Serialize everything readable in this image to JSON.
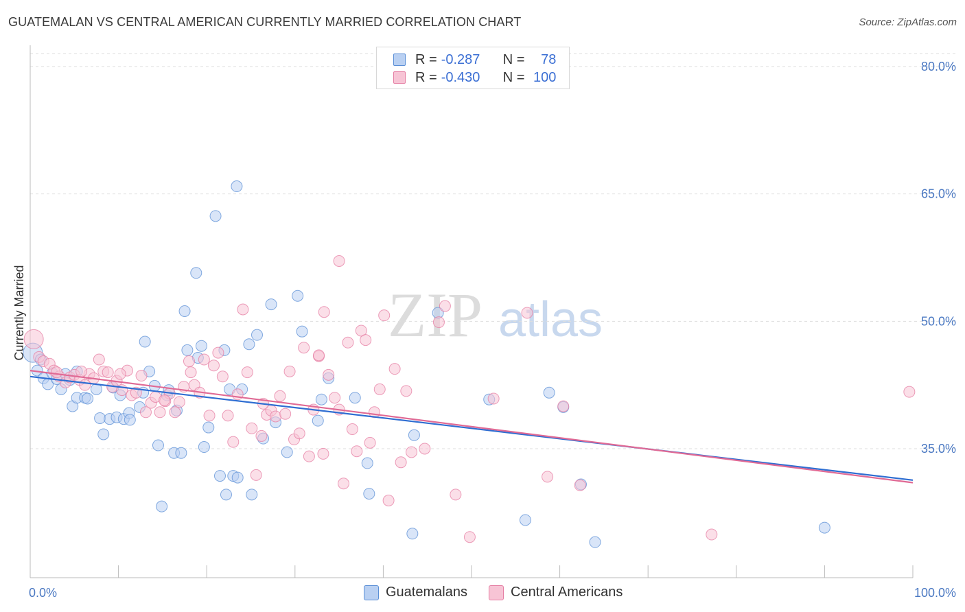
{
  "header": {
    "title": "GUATEMALAN VS CENTRAL AMERICAN CURRENTLY MARRIED CORRELATION CHART",
    "source": "Source: ZipAtlas.com"
  },
  "watermark": {
    "zip": "ZIP",
    "atlas": "atlas"
  },
  "legend": {
    "rows": [
      {
        "r_label": "R =",
        "r_value": "-0.287",
        "n_label": "N =",
        "n_value": "78",
        "color": "#5b8fd6",
        "fill": "#b9d0f2"
      },
      {
        "r_label": "R =",
        "r_value": "-0.430",
        "n_label": "N =",
        "n_value": "100",
        "color": "#e57ea3",
        "fill": "#f7c4d5"
      }
    ]
  },
  "bottom_legend": [
    {
      "label": "Guatemalans",
      "color": "#5b8fd6",
      "fill": "#b9d0f2"
    },
    {
      "label": "Central Americans",
      "color": "#e57ea3",
      "fill": "#f7c4d5"
    }
  ],
  "chart_data": {
    "type": "scatter",
    "title": "GUATEMALAN VS CENTRAL AMERICAN CURRENTLY MARRIED CORRELATION CHART",
    "xlabel": "",
    "ylabel": "Currently Married",
    "xlim": [
      0,
      100
    ],
    "ylim": [
      21,
      83
    ],
    "x_tick_labels": [
      {
        "value": 0,
        "label": "0.0%"
      },
      {
        "value": 100,
        "label": "100.0%"
      }
    ],
    "y_tick_labels": [
      {
        "value": 35,
        "label": "35.0%"
      },
      {
        "value": 50,
        "label": "50.0%"
      },
      {
        "value": 65,
        "label": "65.0%"
      },
      {
        "value": 80,
        "label": "80.0%"
      }
    ],
    "x_minor_ticks": [
      10,
      20,
      30,
      40,
      50,
      60,
      70,
      80,
      90
    ],
    "grid": "horizontal dashed",
    "legend_position": "top-center",
    "series": [
      {
        "name": "Guatemalans",
        "stroke": "#5b8fd6",
        "fill": "#b9d0f2",
        "trend": {
          "x": [
            0,
            100
          ],
          "y": [
            43.5,
            31.3
          ]
        },
        "points": [
          [
            0.3,
            46.3
          ],
          [
            0.8,
            44.2
          ],
          [
            1.2,
            45.5
          ],
          [
            1.5,
            43.3
          ],
          [
            2.0,
            42.6
          ],
          [
            2.5,
            43.9
          ],
          [
            3.0,
            43.2
          ],
          [
            3.5,
            42.0
          ],
          [
            4.0,
            43.8
          ],
          [
            4.5,
            43.1
          ],
          [
            4.8,
            40.0
          ],
          [
            5.3,
            44.1
          ],
          [
            5.3,
            41.0
          ],
          [
            6.2,
            41.0
          ],
          [
            6.5,
            40.9
          ],
          [
            7.5,
            42.0
          ],
          [
            7.9,
            38.6
          ],
          [
            8.3,
            36.7
          ],
          [
            9.0,
            38.5
          ],
          [
            9.4,
            42.2
          ],
          [
            9.8,
            38.7
          ],
          [
            10.2,
            41.3
          ],
          [
            10.6,
            38.5
          ],
          [
            11.2,
            39.2
          ],
          [
            11.3,
            38.4
          ],
          [
            12.4,
            39.9
          ],
          [
            12.8,
            41.6
          ],
          [
            13.0,
            47.6
          ],
          [
            13.5,
            44.1
          ],
          [
            14.1,
            42.4
          ],
          [
            14.5,
            35.4
          ],
          [
            14.9,
            28.2
          ],
          [
            15.5,
            41.3
          ],
          [
            15.7,
            41.9
          ],
          [
            16.3,
            34.5
          ],
          [
            16.6,
            39.5
          ],
          [
            17.1,
            34.5
          ],
          [
            17.5,
            51.2
          ],
          [
            17.8,
            46.6
          ],
          [
            18.8,
            55.7
          ],
          [
            19.0,
            45.7
          ],
          [
            19.4,
            47.1
          ],
          [
            19.7,
            35.2
          ],
          [
            20.2,
            37.5
          ],
          [
            21.0,
            62.4
          ],
          [
            21.5,
            31.8
          ],
          [
            22.0,
            46.6
          ],
          [
            22.2,
            29.6
          ],
          [
            22.6,
            42.0
          ],
          [
            23.0,
            31.8
          ],
          [
            23.5,
            31.6
          ],
          [
            23.4,
            65.9
          ],
          [
            24.0,
            42.0
          ],
          [
            24.8,
            47.3
          ],
          [
            25.1,
            29.6
          ],
          [
            25.7,
            48.4
          ],
          [
            26.4,
            36.2
          ],
          [
            27.3,
            52.0
          ],
          [
            27.8,
            38.1
          ],
          [
            29.1,
            34.6
          ],
          [
            30.3,
            53.0
          ],
          [
            30.8,
            48.8
          ],
          [
            32.6,
            38.3
          ],
          [
            33.0,
            40.8
          ],
          [
            33.8,
            43.3
          ],
          [
            36.8,
            41.0
          ],
          [
            38.2,
            33.3
          ],
          [
            38.4,
            29.7
          ],
          [
            43.3,
            25.0
          ],
          [
            43.5,
            36.6
          ],
          [
            46.2,
            51.0
          ],
          [
            52.0,
            40.8
          ],
          [
            58.8,
            41.6
          ],
          [
            60.4,
            39.9
          ],
          [
            62.4,
            30.8
          ],
          [
            56.1,
            26.6
          ],
          [
            90.0,
            25.7
          ],
          [
            64.0,
            24.0
          ]
        ]
      },
      {
        "name": "Central Americans",
        "stroke": "#e57ea3",
        "fill": "#f7c4d5",
        "trend": {
          "x": [
            0,
            100
          ],
          "y": [
            44.2,
            31.0
          ]
        },
        "points": [
          [
            0.4,
            47.9
          ],
          [
            1.0,
            45.8
          ],
          [
            1.5,
            45.3
          ],
          [
            2.2,
            45.0
          ],
          [
            2.7,
            44.2
          ],
          [
            3.3,
            43.5
          ],
          [
            4.0,
            42.8
          ],
          [
            4.5,
            43.4
          ],
          [
            5.0,
            43.7
          ],
          [
            5.6,
            43.1
          ],
          [
            6.2,
            42.5
          ],
          [
            6.7,
            43.8
          ],
          [
            7.2,
            43.3
          ],
          [
            7.8,
            45.5
          ],
          [
            8.3,
            44.1
          ],
          [
            8.8,
            44.0
          ],
          [
            9.3,
            42.3
          ],
          [
            9.8,
            43.0
          ],
          [
            10.4,
            41.9
          ],
          [
            11.0,
            44.2
          ],
          [
            11.5,
            41.3
          ],
          [
            12.0,
            41.6
          ],
          [
            12.6,
            43.6
          ],
          [
            13.1,
            39.3
          ],
          [
            13.7,
            40.4
          ],
          [
            14.2,
            41.1
          ],
          [
            14.7,
            39.3
          ],
          [
            15.3,
            40.6
          ],
          [
            15.8,
            41.5
          ],
          [
            16.4,
            39.3
          ],
          [
            16.9,
            40.5
          ],
          [
            17.4,
            42.3
          ],
          [
            18.0,
            45.3
          ],
          [
            18.6,
            42.5
          ],
          [
            19.2,
            41.6
          ],
          [
            19.7,
            45.5
          ],
          [
            20.3,
            38.9
          ],
          [
            20.8,
            44.8
          ],
          [
            21.3,
            46.3
          ],
          [
            21.8,
            43.5
          ],
          [
            22.4,
            38.9
          ],
          [
            23.0,
            35.8
          ],
          [
            23.5,
            41.4
          ],
          [
            24.1,
            51.4
          ],
          [
            24.6,
            44.0
          ],
          [
            25.1,
            37.4
          ],
          [
            25.6,
            31.9
          ],
          [
            26.2,
            36.5
          ],
          [
            26.8,
            39.0
          ],
          [
            27.3,
            39.5
          ],
          [
            27.8,
            38.8
          ],
          [
            28.3,
            41.2
          ],
          [
            28.9,
            39.1
          ],
          [
            29.4,
            44.1
          ],
          [
            29.9,
            36.1
          ],
          [
            30.5,
            36.8
          ],
          [
            31.0,
            46.9
          ],
          [
            31.6,
            34.1
          ],
          [
            32.1,
            39.6
          ],
          [
            32.7,
            45.9
          ],
          [
            33.2,
            34.4
          ],
          [
            33.8,
            43.7
          ],
          [
            34.5,
            41.0
          ],
          [
            35.0,
            57.1
          ],
          [
            35.5,
            30.9
          ],
          [
            36.0,
            47.5
          ],
          [
            36.5,
            37.3
          ],
          [
            37.0,
            34.7
          ],
          [
            37.5,
            48.9
          ],
          [
            38.0,
            47.8
          ],
          [
            38.5,
            35.7
          ],
          [
            39.0,
            39.3
          ],
          [
            39.6,
            42.0
          ],
          [
            40.1,
            50.7
          ],
          [
            40.6,
            28.9
          ],
          [
            41.3,
            44.4
          ],
          [
            42.0,
            33.4
          ],
          [
            42.6,
            41.8
          ],
          [
            43.2,
            34.6
          ],
          [
            44.7,
            35.0
          ],
          [
            46.3,
            49.9
          ],
          [
            47.0,
            51.8
          ],
          [
            48.2,
            29.6
          ],
          [
            49.8,
            24.6
          ],
          [
            52.5,
            40.9
          ],
          [
            56.3,
            51.0
          ],
          [
            58.6,
            31.7
          ],
          [
            60.4,
            40.0
          ],
          [
            62.3,
            30.7
          ],
          [
            77.2,
            24.9
          ],
          [
            99.6,
            41.7
          ],
          [
            35.0,
            39.6
          ],
          [
            32.7,
            46.0
          ],
          [
            33.3,
            51.1
          ],
          [
            18.2,
            44.0
          ],
          [
            10.2,
            43.8
          ],
          [
            5.8,
            44.1
          ],
          [
            3.0,
            44.0
          ],
          [
            15.2,
            40.7
          ],
          [
            26.4,
            40.3
          ]
        ]
      }
    ]
  }
}
